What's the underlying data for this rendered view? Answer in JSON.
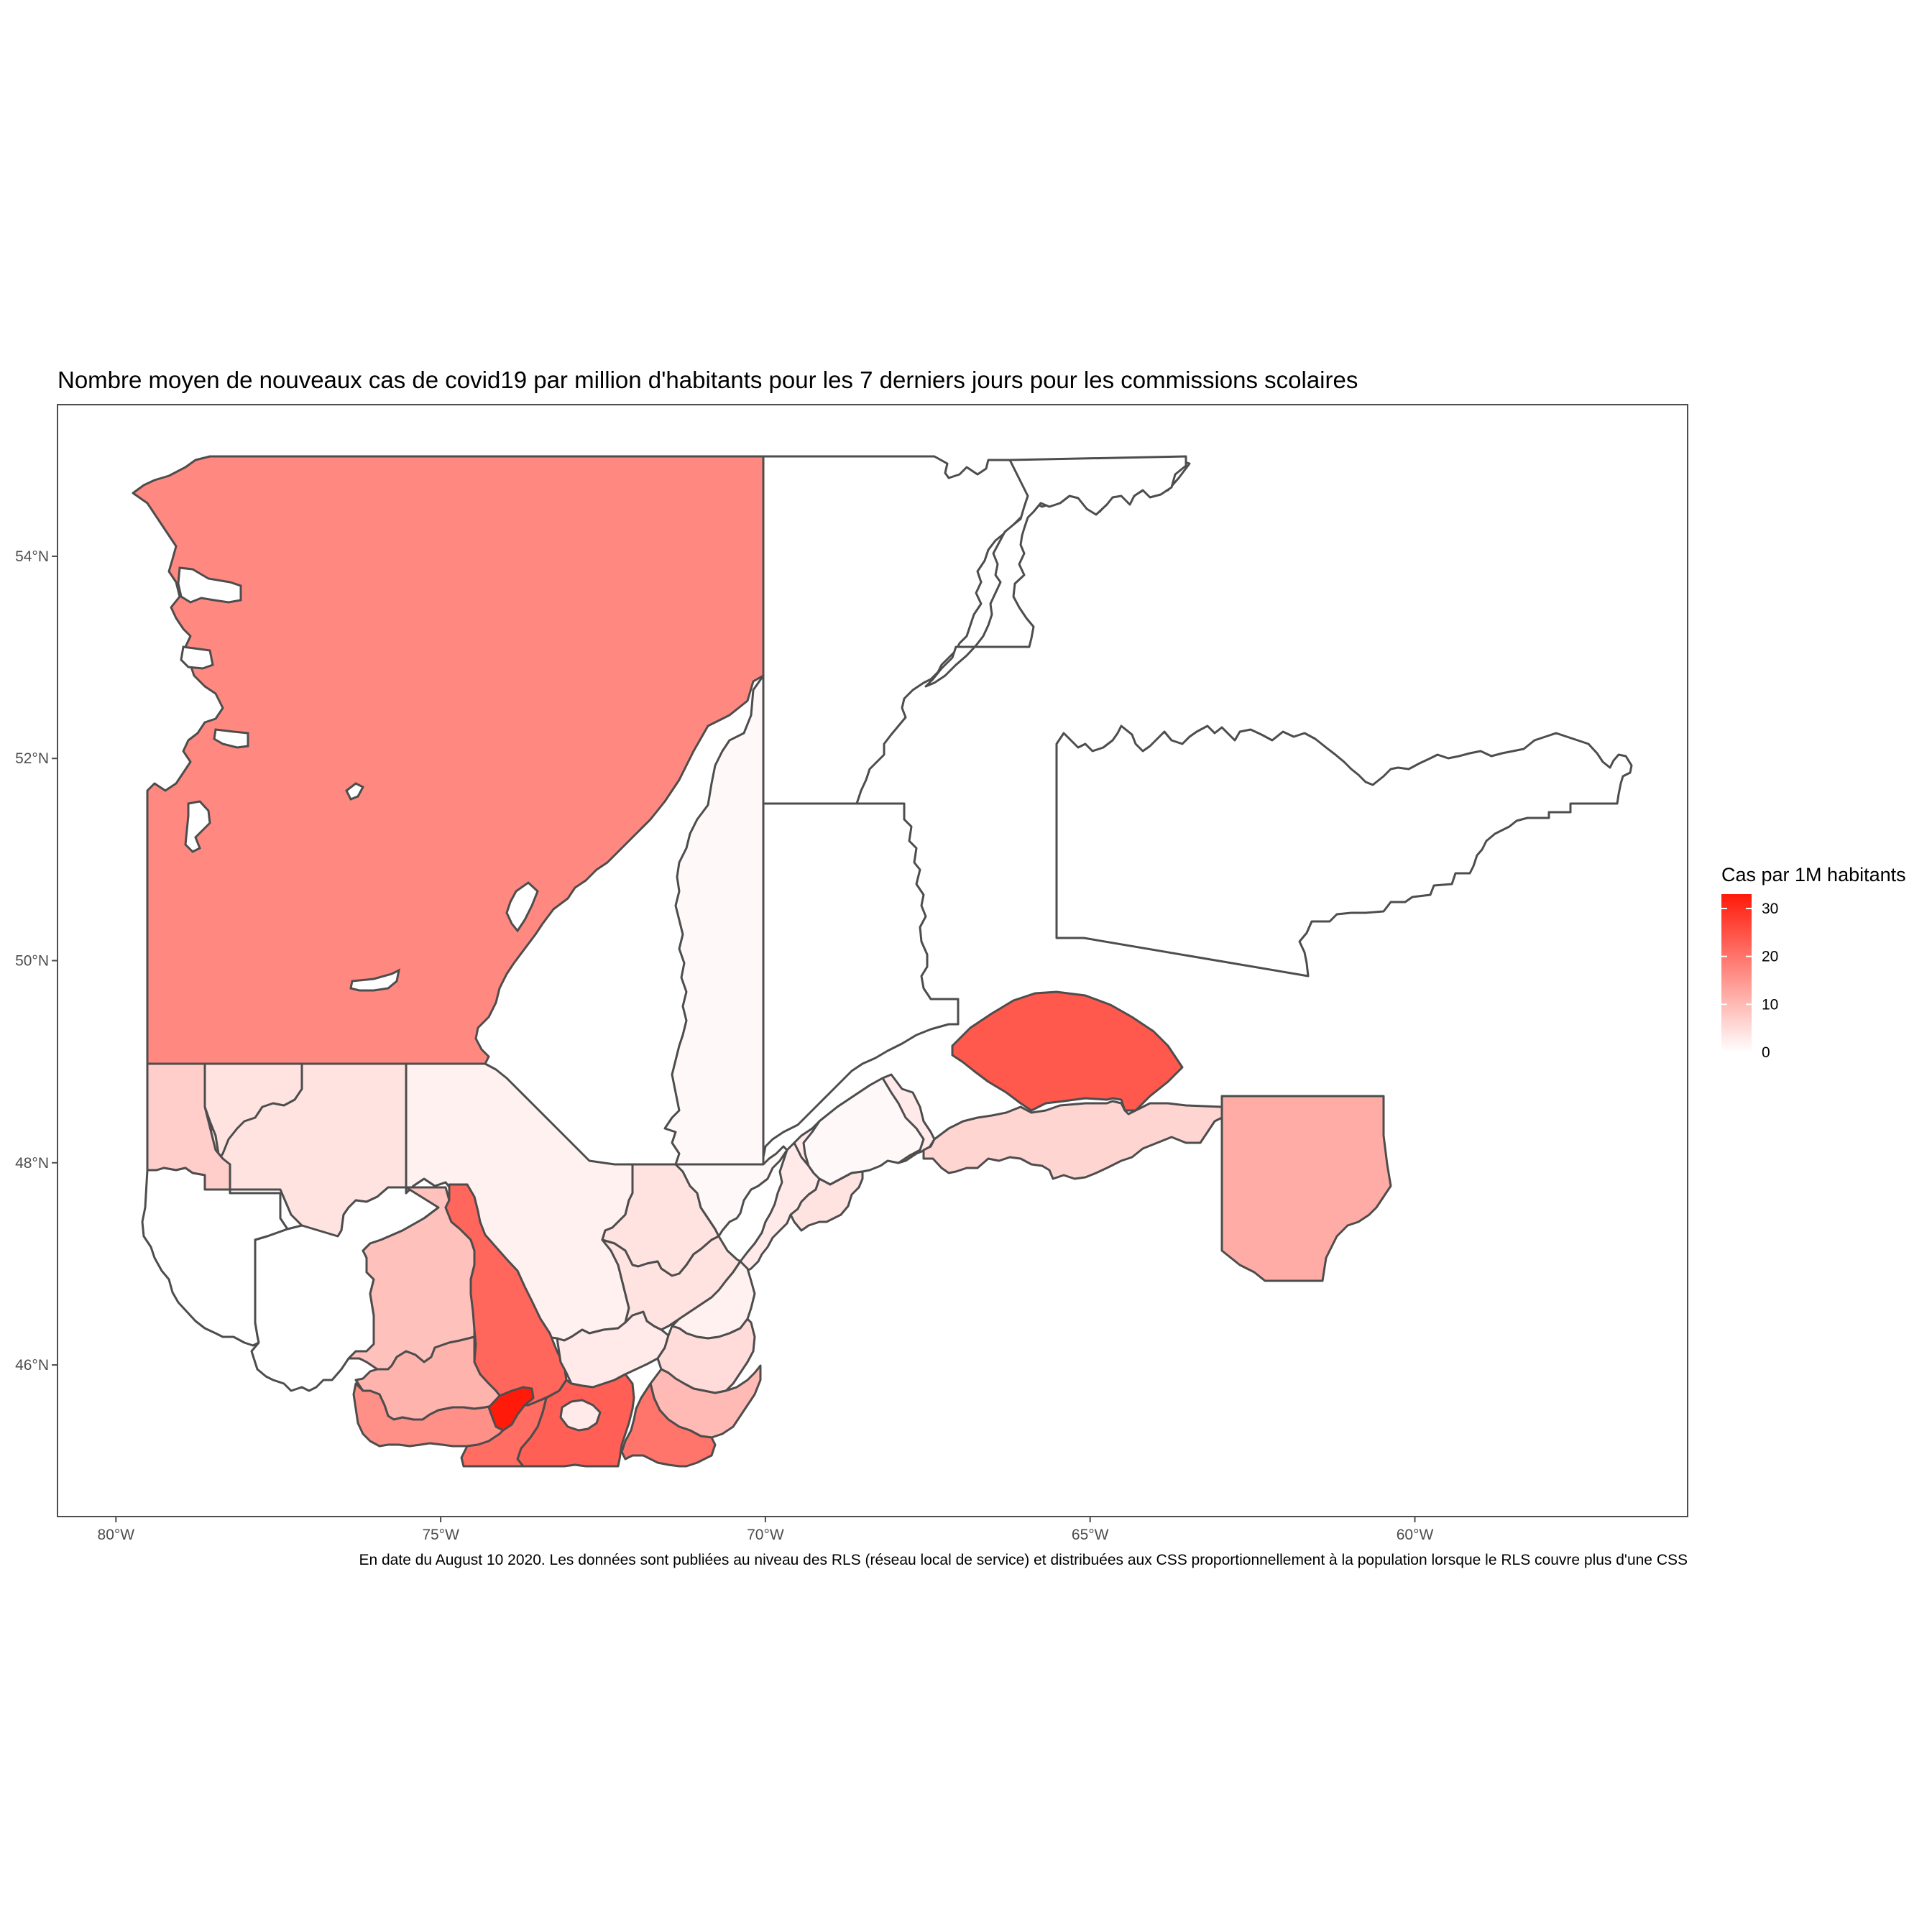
{
  "title": "Nombre moyen de nouveaux cas de covid19 par million d'habitants pour les 7 derniers jours pour les commissions scolaires",
  "caption": "En date du August 10 2020. Les données sont publiées au niveau des RLS (réseau local de service) et distribuées aux CSS proportionnellement à la population lorsque le RLS couvre plus d'une CSS",
  "x_axis": {
    "ticks": [
      "80°W",
      "75°W",
      "70°W",
      "65°W",
      "60°W"
    ],
    "values": [
      -80,
      -75,
      -70,
      -65,
      -60
    ],
    "range": [
      -80.9,
      -55.8
    ]
  },
  "y_axis": {
    "ticks": [
      "46°N",
      "48°N",
      "50°N",
      "52°N",
      "54°N"
    ],
    "values": [
      46,
      48,
      50,
      52,
      54
    ],
    "range": [
      44.5,
      55.5
    ]
  },
  "legend": {
    "title": "Cas par 1M habitants",
    "ticks": [
      "0",
      "10",
      "20",
      "30"
    ],
    "tick_values": [
      0,
      10,
      20,
      30
    ],
    "range": [
      0,
      33
    ],
    "color_low": "#ffffff",
    "color_high": "#ff1a0a"
  },
  "colors": {
    "border": "#4d4d4d",
    "panel_border": "#4d4d4d",
    "tick_label": "#4d4d4d"
  },
  "regions": [
    {
      "id": "nord-ouest",
      "value": 17
    },
    {
      "id": "centre-nord",
      "value": 1
    },
    {
      "id": "nord-est-hautes-terres",
      "value": 0
    },
    {
      "id": "cote-nord-ouest",
      "value": 0
    },
    {
      "id": "cote-nord-est",
      "value": 0
    },
    {
      "id": "anticosti",
      "value": 24
    },
    {
      "id": "iles-sud-est",
      "value": 12
    },
    {
      "id": "gaspesie-nord",
      "value": 3
    },
    {
      "id": "gaspesie-sud",
      "value": 6
    },
    {
      "id": "abitibi-est",
      "value": 4
    },
    {
      "id": "abitibi-ouest",
      "value": 7
    },
    {
      "id": "temiscamingue",
      "value": 0
    },
    {
      "id": "outaouais-nord",
      "value": 0
    },
    {
      "id": "mauricie-haut",
      "value": 2
    },
    {
      "id": "saguenay",
      "value": 4
    },
    {
      "id": "saguenay-est",
      "value": 1
    },
    {
      "id": "charlevoix",
      "value": 3
    },
    {
      "id": "bas-st-laurent",
      "value": 1
    },
    {
      "id": "bas-st-laurent-est",
      "value": 4
    },
    {
      "id": "laurentides-nord",
      "value": 9
    },
    {
      "id": "lanaudiere",
      "value": 22
    },
    {
      "id": "mauricie-sud",
      "value": 3
    },
    {
      "id": "quebec-capitale",
      "value": 4
    },
    {
      "id": "chaudiere-appalaches",
      "value": 2
    },
    {
      "id": "beauce",
      "value": 5
    },
    {
      "id": "estrie-nord",
      "value": 10
    },
    {
      "id": "estrie-sud",
      "value": 20
    },
    {
      "id": "monteregie-est",
      "value": 23
    },
    {
      "id": "outaouais-sud",
      "value": 11
    },
    {
      "id": "laurentides-sud",
      "value": 16
    },
    {
      "id": "monteregie-ouest",
      "value": 21
    },
    {
      "id": "centre-du-quebec",
      "value": 3
    },
    {
      "id": "montreal",
      "value": 33
    }
  ]
}
